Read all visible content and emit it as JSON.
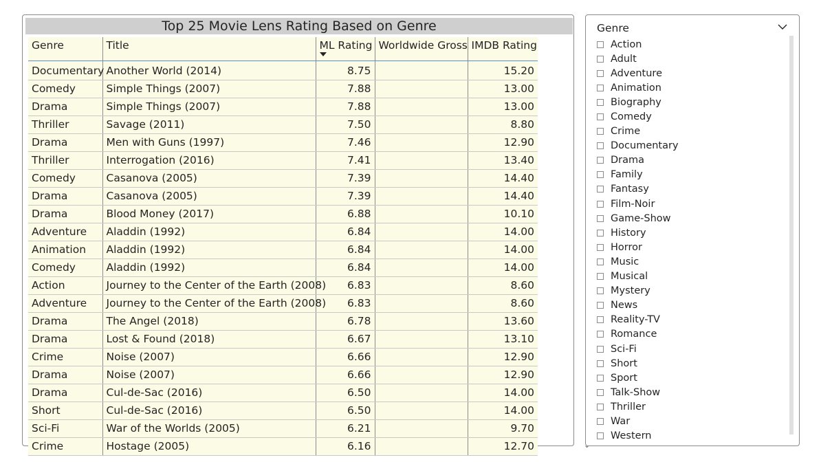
{
  "table": {
    "title": "Top 25 Movie Lens Rating Based on Genre",
    "columns": [
      "Genre",
      "Title",
      "ML Rating",
      "Worldwide Gross",
      "IMDB Rating"
    ],
    "rows": [
      [
        "Documentary",
        "Another World (2014)",
        "8.75",
        "",
        "15.20"
      ],
      [
        "Comedy",
        "Simple Things (2007)",
        "7.88",
        "",
        "13.00"
      ],
      [
        "Drama",
        "Simple Things (2007)",
        "7.88",
        "",
        "13.00"
      ],
      [
        "Thriller",
        "Savage (2011)",
        "7.50",
        "",
        "8.80"
      ],
      [
        "Drama",
        "Men with Guns (1997)",
        "7.46",
        "",
        "12.90"
      ],
      [
        "Thriller",
        "Interrogation (2016)",
        "7.41",
        "",
        "13.40"
      ],
      [
        "Comedy",
        "Casanova (2005)",
        "7.39",
        "",
        "14.40"
      ],
      [
        "Drama",
        "Casanova (2005)",
        "7.39",
        "",
        "14.40"
      ],
      [
        "Drama",
        "Blood Money (2017)",
        "6.88",
        "",
        "10.10"
      ],
      [
        "Adventure",
        "Aladdin (1992)",
        "6.84",
        "",
        "14.00"
      ],
      [
        "Animation",
        "Aladdin (1992)",
        "6.84",
        "",
        "14.00"
      ],
      [
        "Comedy",
        "Aladdin (1992)",
        "6.84",
        "",
        "14.00"
      ],
      [
        "Action",
        "Journey to the Center of the Earth (2008)",
        "6.83",
        "",
        "8.60"
      ],
      [
        "Adventure",
        "Journey to the Center of the Earth (2008)",
        "6.83",
        "",
        "8.60"
      ],
      [
        "Drama",
        "The Angel (2018)",
        "6.78",
        "",
        "13.60"
      ],
      [
        "Drama",
        "Lost & Found (2018)",
        "6.67",
        "",
        "13.10"
      ],
      [
        "Crime",
        "Noise (2007)",
        "6.66",
        "",
        "12.90"
      ],
      [
        "Drama",
        "Noise (2007)",
        "6.66",
        "",
        "12.90"
      ],
      [
        "Drama",
        "Cul-de-Sac (2016)",
        "6.50",
        "",
        "14.00"
      ],
      [
        "Short",
        "Cul-de-Sac (2016)",
        "6.50",
        "",
        "14.00"
      ],
      [
        "Sci-Fi",
        "War of the Worlds (2005)",
        "6.21",
        "",
        "9.70"
      ],
      [
        "Crime",
        "Hostage (2005)",
        "6.16",
        "",
        "12.70"
      ]
    ],
    "sorted_column_icon": "sort-descending-icon"
  },
  "slicer": {
    "header": "Genre",
    "expand_icon": "chevron-down-icon",
    "items": [
      "Action",
      "Adult",
      "Adventure",
      "Animation",
      "Biography",
      "Comedy",
      "Crime",
      "Documentary",
      "Drama",
      "Family",
      "Fantasy",
      "Film-Noir",
      "Game-Show",
      "History",
      "Horror",
      "Music",
      "Musical",
      "Mystery",
      "News",
      "Reality-TV",
      "Romance",
      "Sci-Fi",
      "Short",
      "Sport",
      "Talk-Show",
      "Thriller",
      "War",
      "Western"
    ]
  },
  "colors": {
    "table_cell_bg": "#fbfbe6",
    "title_bar_bg": "#cfcfcf",
    "header_underline": "#5b8ec9"
  }
}
